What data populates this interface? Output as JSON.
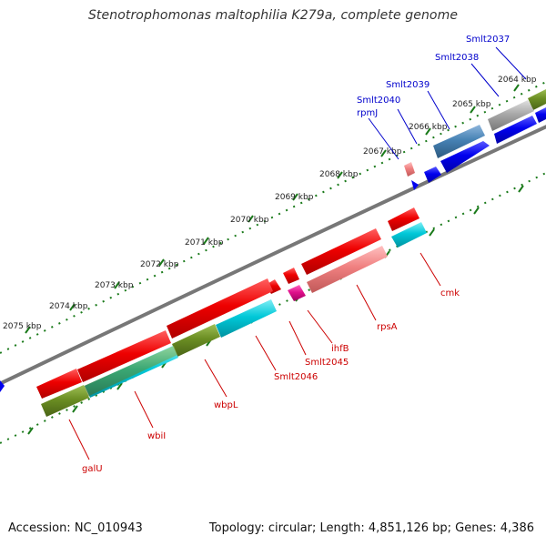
{
  "header": {
    "title": "Stenotrophomonas maltophilia K279a, complete genome"
  },
  "footer": {
    "accession": "Accession: NC_010943",
    "summary": "Topology: circular; Length: 4,851,126 bp; Genes: 4,386"
  },
  "ticks": [
    "2064 kbp",
    "2065 kbp",
    "2066 kbp",
    "2067 kbp",
    "2068 kbp",
    "2069 kbp",
    "2070 kbp",
    "2071 kbp",
    "2072 kbp",
    "2073 kbp",
    "2074 kbp",
    "2075 kbp"
  ],
  "gene_labels_top": [
    "Smlt2037",
    "Smlt2038",
    "Smlt2039",
    "Smlt2040",
    "rpmJ"
  ],
  "gene_labels_bottom": [
    "cmk",
    "rpsA",
    "ihfB",
    "Smlt2045",
    "Smlt2046",
    "wbpL",
    "wbiI",
    "galU"
  ],
  "colors": {
    "forward_cds": "#0000ee",
    "reverse_cds": "#ee0000",
    "olive": "#6b8e23",
    "cyan": "#00c8d8",
    "steel": "#4682b4",
    "grey": "#a0a0a0",
    "pink": "#f08080",
    "magenta": "#e0108c",
    "tick": "#1a7a1a",
    "backbone": "#808080",
    "label_forward": "#0000cc",
    "label_reverse": "#cc0000"
  }
}
